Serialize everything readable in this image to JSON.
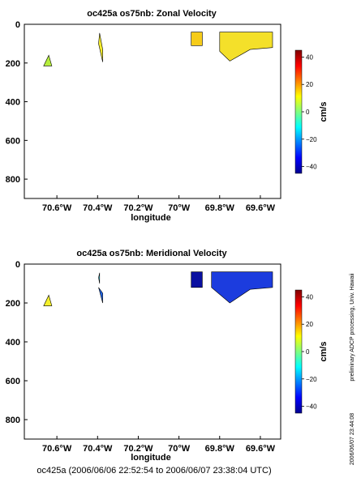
{
  "figure": {
    "footer": "oc425a (2006/06/06 22:52:54 to 2006/06/07 23:38:04 UTC)",
    "side_note": "preliminary ADCP processing,   Univ. Hawaii",
    "date_stamp": "2006/06/07 23:44:08"
  },
  "chart_data": [
    {
      "type": "heatmap",
      "title": "oc425a os75nb: Zonal Velocity",
      "xlabel": "longitude",
      "ylabel": "",
      "xlim": [
        -70.76,
        -69.5
      ],
      "ylim": [
        900,
        0
      ],
      "x_ticks": [
        -70.6,
        -70.4,
        -70.2,
        -70.0,
        -69.8,
        -69.6
      ],
      "x_tick_labels": [
        "70.6°W",
        "70.4°W",
        "70.2°W",
        "70°W",
        "69.8°W",
        "69.6°W"
      ],
      "y_ticks": [
        0,
        200,
        400,
        600,
        800
      ],
      "y_tick_labels": [
        "0",
        "200",
        "400",
        "600",
        "800"
      ],
      "colorbar": {
        "label": "cm/s",
        "range": [
          -45,
          45
        ],
        "ticks": [
          40,
          20,
          0,
          -20,
          -40
        ],
        "tick_labels": [
          "40",
          "20",
          "0",
          "−20",
          "−40"
        ]
      },
      "regions": [
        {
          "lon": [
            -70.665,
            -70.64,
            -70.625
          ],
          "depth": [
            215,
            160,
            215
          ],
          "value": 8,
          "color": "#b5ee3c"
        },
        {
          "lon": [
            -70.395,
            -70.39,
            -70.375,
            -70.375
          ],
          "depth": [
            100,
            45,
            130,
            195
          ],
          "value": 25,
          "color": "#f4ec2c"
        },
        {
          "lon": [
            -69.94,
            -69.885,
            -69.885,
            -69.94
          ],
          "depth": [
            40,
            40,
            110,
            110
          ],
          "value": 28,
          "color": "#f6cc1a"
        },
        {
          "lon": [
            -69.8,
            -69.54,
            -69.54,
            -69.65,
            -69.75,
            -69.8
          ],
          "depth": [
            40,
            40,
            120,
            130,
            190,
            140
          ],
          "value": 26,
          "color": "#f4e02a"
        }
      ]
    },
    {
      "type": "heatmap",
      "title": "oc425a os75nb: Meridional Velocity",
      "xlabel": "longitude",
      "ylabel": "",
      "xlim": [
        -70.76,
        -69.5
      ],
      "ylim": [
        900,
        0
      ],
      "x_ticks": [
        -70.6,
        -70.4,
        -70.2,
        -70.0,
        -69.8,
        -69.6
      ],
      "x_tick_labels": [
        "70.6°W",
        "70.4°W",
        "70.2°W",
        "70°W",
        "69.8°W",
        "69.6°W"
      ],
      "y_ticks": [
        0,
        200,
        400,
        600,
        800
      ],
      "y_tick_labels": [
        "0",
        "200",
        "400",
        "600",
        "800"
      ],
      "colorbar": {
        "label": "cm/s",
        "range": [
          -45,
          45
        ],
        "ticks": [
          40,
          20,
          0,
          -20,
          -40
        ],
        "tick_labels": [
          "40",
          "20",
          "0",
          "−20",
          "−40"
        ]
      },
      "regions": [
        {
          "lon": [
            -70.665,
            -70.64,
            -70.625
          ],
          "depth": [
            215,
            160,
            215
          ],
          "value": 28,
          "color": "#f4f02c"
        },
        {
          "lon": [
            -70.395,
            -70.39,
            -70.39
          ],
          "depth": [
            70,
            45,
            100
          ],
          "value": 5,
          "color": "#40d8f0"
        },
        {
          "lon": [
            -70.395,
            -70.375,
            -70.375
          ],
          "depth": [
            120,
            150,
            200
          ],
          "value": -25,
          "color": "#1e64e6"
        },
        {
          "lon": [
            -69.94,
            -69.885,
            -69.885,
            -69.94
          ],
          "depth": [
            40,
            40,
            120,
            120
          ],
          "value": -42,
          "color": "#0a10a0"
        },
        {
          "lon": [
            -69.84,
            -69.54,
            -69.54,
            -69.65,
            -69.75,
            -69.84
          ],
          "depth": [
            40,
            40,
            120,
            130,
            200,
            120
          ],
          "value": -33,
          "color": "#1c3cde"
        }
      ]
    }
  ]
}
